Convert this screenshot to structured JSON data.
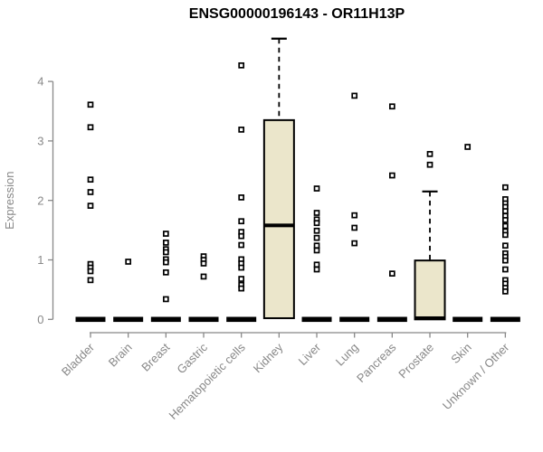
{
  "chart_data": {
    "type": "boxplot",
    "title": "ENSG00000196143 - OR11H13P",
    "ylabel": "Expression",
    "yticks": [
      0,
      1,
      2,
      3,
      4
    ],
    "ylim": [
      0,
      4.8
    ],
    "grid": false,
    "legend": "none",
    "colors": {
      "box_fill": "#ebe6cb",
      "box_stroke": "#000000",
      "axis": "#888888",
      "title_color": "#000000",
      "outlier_fill": "#ffffff"
    },
    "categories": [
      "Bladder",
      "Brain",
      "Breast",
      "Gastric",
      "Hematopoietic cells",
      "Kidney",
      "Liver",
      "Lung",
      "Pancreas",
      "Prostate",
      "Skin",
      "Unknown / Other"
    ],
    "series": [
      {
        "name": "Bladder",
        "box": {
          "q1": 0,
          "median": 0,
          "q3": 0,
          "whisker_low": 0,
          "whisker_high": 0
        },
        "outliers": [
          3.61,
          3.23,
          2.35,
          2.14,
          1.91,
          0.93,
          0.87,
          0.81,
          0.66
        ]
      },
      {
        "name": "Brain",
        "box": {
          "q1": 0,
          "median": 0,
          "q3": 0,
          "whisker_low": 0,
          "whisker_high": 0
        },
        "outliers": [
          0.97
        ]
      },
      {
        "name": "Breast",
        "box": {
          "q1": 0,
          "median": 0,
          "q3": 0,
          "whisker_low": 0,
          "whisker_high": 0
        },
        "outliers": [
          1.44,
          1.29,
          1.18,
          1.13,
          1.01,
          0.96,
          0.79,
          0.34
        ]
      },
      {
        "name": "Gastric",
        "box": {
          "q1": 0,
          "median": 0,
          "q3": 0,
          "whisker_low": 0,
          "whisker_high": 0
        },
        "outliers": [
          1.06,
          1.0,
          0.94,
          0.72
        ]
      },
      {
        "name": "Hematopoietic cells",
        "box": {
          "q1": 0,
          "median": 0,
          "q3": 0,
          "whisker_low": 0,
          "whisker_high": 0
        },
        "outliers": [
          4.27,
          3.19,
          2.05,
          1.65,
          1.47,
          1.4,
          1.25,
          1.01,
          0.94,
          0.87,
          0.68,
          0.58,
          0.52
        ]
      },
      {
        "name": "Kidney",
        "box": {
          "q1": 0.02,
          "median": 1.58,
          "q3": 3.35,
          "whisker_low": 0.02,
          "whisker_high": 4.72
        },
        "outliers": []
      },
      {
        "name": "Liver",
        "box": {
          "q1": 0,
          "median": 0,
          "q3": 0,
          "whisker_low": 0,
          "whisker_high": 0
        },
        "outliers": [
          2.2,
          1.79,
          1.68,
          1.62,
          1.49,
          1.37,
          1.24,
          1.16,
          0.92,
          0.84
        ]
      },
      {
        "name": "Lung",
        "box": {
          "q1": 0,
          "median": 0,
          "q3": 0,
          "whisker_low": 0,
          "whisker_high": 0
        },
        "outliers": [
          3.76,
          1.75,
          1.54,
          1.28
        ]
      },
      {
        "name": "Pancreas",
        "box": {
          "q1": 0,
          "median": 0,
          "q3": 0,
          "whisker_low": 0,
          "whisker_high": 0
        },
        "outliers": [
          3.58,
          2.42,
          0.77
        ]
      },
      {
        "name": "Prostate",
        "box": {
          "q1": 0,
          "median": 0.02,
          "q3": 0.99,
          "whisker_low": 0,
          "whisker_high": 2.15
        },
        "outliers": [
          2.78,
          2.6
        ]
      },
      {
        "name": "Skin",
        "box": {
          "q1": 0,
          "median": 0,
          "q3": 0,
          "whisker_low": 0,
          "whisker_high": 0
        },
        "outliers": [
          2.9
        ]
      },
      {
        "name": "Unknown / Other",
        "box": {
          "q1": 0,
          "median": 0,
          "q3": 0,
          "whisker_low": 0,
          "whisker_high": 0
        },
        "outliers": [
          2.22,
          2.02,
          1.95,
          1.89,
          1.82,
          1.74,
          1.67,
          1.57,
          1.48,
          1.42,
          1.24,
          1.11,
          1.05,
          0.99,
          0.84,
          0.66,
          0.6,
          0.53,
          0.47
        ]
      }
    ]
  }
}
